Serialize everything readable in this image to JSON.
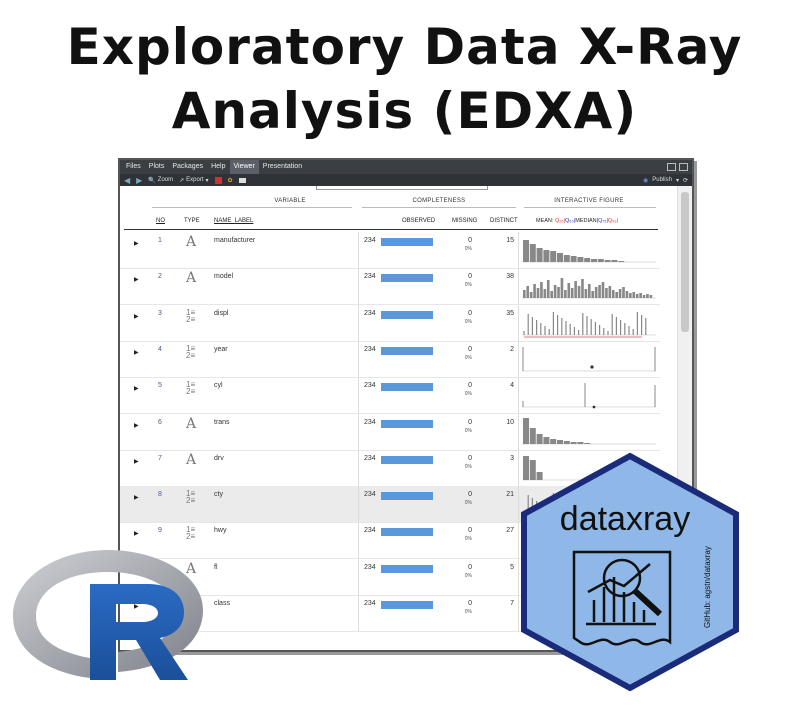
{
  "title": {
    "line1": "Exploratory Data X-Ray",
    "line2": "Analysis (EDXA)"
  },
  "tabs": [
    {
      "label": "Files",
      "active": false
    },
    {
      "label": "Plots",
      "active": false
    },
    {
      "label": "Packages",
      "active": false
    },
    {
      "label": "Help",
      "active": false
    },
    {
      "label": "Viewer",
      "active": true
    },
    {
      "label": "Presentation",
      "active": false
    }
  ],
  "toolbar": {
    "zoom_label": "Zoom",
    "export_label": "Export",
    "publish_label": "Publish"
  },
  "groups": {
    "variable": "VARIABLE",
    "completeness": "COMPLETENESS",
    "figure": "INTERACTIVE FIGURE"
  },
  "columns": {
    "no": "NO",
    "type": "TYPE",
    "name_label": "NAME_LABEL",
    "observed": "OBSERVED",
    "missing": "MISSING",
    "distinct": "DISTINCT"
  },
  "legend": {
    "mean": "MEAN:",
    "q25": "Q₂₅|",
    "q50": "Q₅₀|",
    "median": "MEDIAN|",
    "q75": "Q₇₅|",
    "q99": "Q₉₉|"
  },
  "rows": [
    {
      "no": "1",
      "type": "char",
      "name": "manufacturer",
      "observed": "234",
      "missing": "0",
      "pct": "0%",
      "distinct": "15"
    },
    {
      "no": "2",
      "type": "char",
      "name": "model",
      "observed": "234",
      "missing": "0",
      "pct": "0%",
      "distinct": "38"
    },
    {
      "no": "3",
      "type": "num",
      "name": "displ",
      "observed": "234",
      "missing": "0",
      "pct": "0%",
      "distinct": "35"
    },
    {
      "no": "4",
      "type": "num",
      "name": "year",
      "observed": "234",
      "missing": "0",
      "pct": "0%",
      "distinct": "2"
    },
    {
      "no": "5",
      "type": "num",
      "name": "cyl",
      "observed": "234",
      "missing": "0",
      "pct": "0%",
      "distinct": "4"
    },
    {
      "no": "6",
      "type": "char",
      "name": "trans",
      "observed": "234",
      "missing": "0",
      "pct": "0%",
      "distinct": "10"
    },
    {
      "no": "7",
      "type": "char",
      "name": "drv",
      "observed": "234",
      "missing": "0",
      "pct": "0%",
      "distinct": "3"
    },
    {
      "no": "8",
      "type": "num",
      "name": "cty",
      "observed": "234",
      "missing": "0",
      "pct": "0%",
      "distinct": "21"
    },
    {
      "no": "9",
      "type": "num",
      "name": "hwy",
      "observed": "234",
      "missing": "0",
      "pct": "0%",
      "distinct": "27"
    },
    {
      "no": "",
      "type": "char",
      "name": "fl",
      "observed": "234",
      "missing": "0",
      "pct": "0%",
      "distinct": "5"
    },
    {
      "no": "",
      "type": "char",
      "name": "class",
      "observed": "234",
      "missing": "0",
      "pct": "0%",
      "distinct": "7"
    }
  ],
  "observed_fraction": 1.0,
  "hex_logo": {
    "text": "dataxray",
    "credit": "GitHub: agstn/dataxray",
    "fill": "#8fb8e8",
    "border": "#1a2b7a"
  },
  "colors": {
    "bar": "#5a98db",
    "tabbar": "#3a3f44"
  }
}
